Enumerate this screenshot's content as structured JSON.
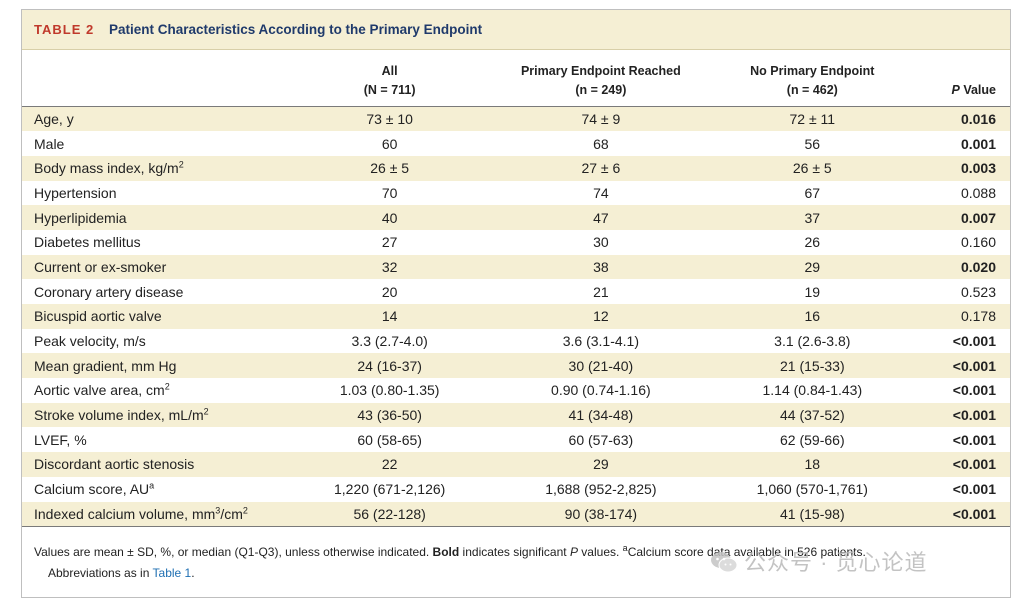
{
  "table": {
    "label": "TABLE 2",
    "title": "Patient Characteristics According to the Primary Endpoint",
    "columns": {
      "all": {
        "name": "All",
        "n": "(N = 711)"
      },
      "reached": {
        "name": "Primary Endpoint Reached",
        "n": "(n = 249)"
      },
      "none": {
        "name": "No Primary Endpoint",
        "n": "(n = 462)"
      },
      "p": {
        "italic": "P",
        "rest": " Value"
      }
    },
    "rows": [
      {
        "label": "Age, y",
        "sup": "",
        "all": "73 ± 10",
        "reached": "74 ± 9",
        "none": "72 ± 11",
        "p": "0.016",
        "sig": true
      },
      {
        "label": "Male",
        "sup": "",
        "all": "60",
        "reached": "68",
        "none": "56",
        "p": "0.001",
        "sig": true
      },
      {
        "label": "Body mass index, kg/m",
        "sup": "2",
        "all": "26 ± 5",
        "reached": "27 ± 6",
        "none": "26 ± 5",
        "p": "0.003",
        "sig": true
      },
      {
        "label": "Hypertension",
        "sup": "",
        "all": "70",
        "reached": "74",
        "none": "67",
        "p": "0.088",
        "sig": false
      },
      {
        "label": "Hyperlipidemia",
        "sup": "",
        "all": "40",
        "reached": "47",
        "none": "37",
        "p": "0.007",
        "sig": true
      },
      {
        "label": "Diabetes mellitus",
        "sup": "",
        "all": "27",
        "reached": "30",
        "none": "26",
        "p": "0.160",
        "sig": false
      },
      {
        "label": "Current or ex-smoker",
        "sup": "",
        "all": "32",
        "reached": "38",
        "none": "29",
        "p": "0.020",
        "sig": true
      },
      {
        "label": "Coronary artery disease",
        "sup": "",
        "all": "20",
        "reached": "21",
        "none": "19",
        "p": "0.523",
        "sig": false
      },
      {
        "label": "Bicuspid aortic valve",
        "sup": "",
        "all": "14",
        "reached": "12",
        "none": "16",
        "p": "0.178",
        "sig": false
      },
      {
        "label": "Peak velocity, m/s",
        "sup": "",
        "all": "3.3 (2.7-4.0)",
        "reached": "3.6 (3.1-4.1)",
        "none": "3.1 (2.6-3.8)",
        "p": "<0.001",
        "sig": true
      },
      {
        "label": "Mean gradient, mm Hg",
        "sup": "",
        "all": "24 (16-37)",
        "reached": "30 (21-40)",
        "none": "21 (15-33)",
        "p": "<0.001",
        "sig": true
      },
      {
        "label": "Aortic valve area, cm",
        "sup": "2",
        "all": "1.03 (0.80-1.35)",
        "reached": "0.90 (0.74-1.16)",
        "none": "1.14 (0.84-1.43)",
        "p": "<0.001",
        "sig": true
      },
      {
        "label": "Stroke volume index, mL/m",
        "sup": "2",
        "all": "43 (36-50)",
        "reached": "41 (34-48)",
        "none": "44 (37-52)",
        "p": "<0.001",
        "sig": true
      },
      {
        "label": "LVEF, %",
        "sup": "",
        "all": "60 (58-65)",
        "reached": "60 (57-63)",
        "none": "62 (59-66)",
        "p": "<0.001",
        "sig": true
      },
      {
        "label": "Discordant aortic stenosis",
        "sup": "",
        "all": "22",
        "reached": "29",
        "none": "18",
        "p": "<0.001",
        "sig": true
      },
      {
        "label": "Calcium score, AU",
        "sup": "a",
        "all": "1,220 (671-2,126)",
        "reached": "1,688 (952-2,825)",
        "none": "1,060 (570-1,761)",
        "p": "<0.001",
        "sig": true
      },
      {
        "label": "Indexed calcium volume, mm",
        "sup": "3",
        "label2": "/cm",
        "sup2": "2",
        "all": "56 (22-128)",
        "reached": "90 (38-174)",
        "none": "41 (15-98)",
        "p": "<0.001",
        "sig": true
      }
    ],
    "footnote": {
      "part1": "Values are mean ± SD, %, or median (Q1-Q3), unless otherwise indicated. ",
      "bold": "Bold",
      "part2": " indicates significant ",
      "italic": "P",
      "part3": " values. ",
      "sup": "a",
      "part4": "Calcium score data available in 526 patients.",
      "line2_pre": "Abbreviations as in ",
      "line2_link": "Table 1",
      "line2_post": "."
    }
  },
  "watermark": {
    "text": "公众号 · 觅心论道",
    "icon": "wechat-icon"
  }
}
